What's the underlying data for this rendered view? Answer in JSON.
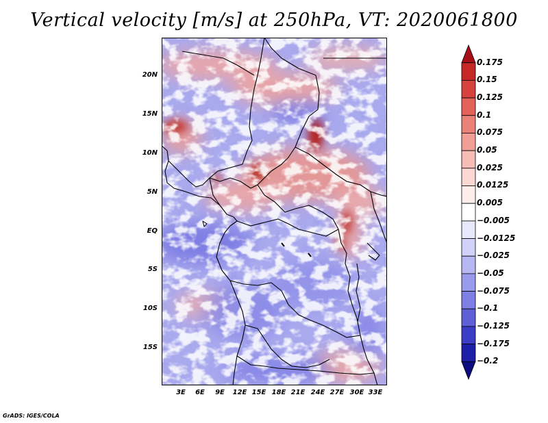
{
  "title": "Vertical velocity [m/s] at 250hPa, VT: 2020061800",
  "credit": "GrADS: IGES/COLA",
  "map": {
    "lat_ticks": [
      "20N",
      "15N",
      "10N",
      "5N",
      "EQ",
      "5S",
      "10S",
      "15S"
    ],
    "lon_ticks": [
      "3E",
      "6E",
      "9E",
      "12E",
      "15E",
      "18E",
      "21E",
      "24E",
      "27E",
      "30E",
      "33E"
    ]
  },
  "colorbar": {
    "labels": [
      "0.175",
      "0.15",
      "0.125",
      "0.1",
      "0.075",
      "0.05",
      "0.025",
      "0.0125",
      "0.005",
      "−0.005",
      "−0.0125",
      "−0.025",
      "−0.05",
      "−0.075",
      "−0.1",
      "−0.125",
      "−0.175",
      "−0.2"
    ],
    "colors": [
      "#a50f15",
      "#c62828",
      "#d7423e",
      "#e2625a",
      "#eb827a",
      "#f09e96",
      "#f6bcb6",
      "#fbd8d4",
      "#fdeeec",
      "#ffffff",
      "#e8e8fb",
      "#d2d2f8",
      "#b7b7f4",
      "#9b9bee",
      "#7f7fe6",
      "#5f5fd8",
      "#3c3cc4",
      "#1e1ea8",
      "#0c0c80"
    ]
  }
}
